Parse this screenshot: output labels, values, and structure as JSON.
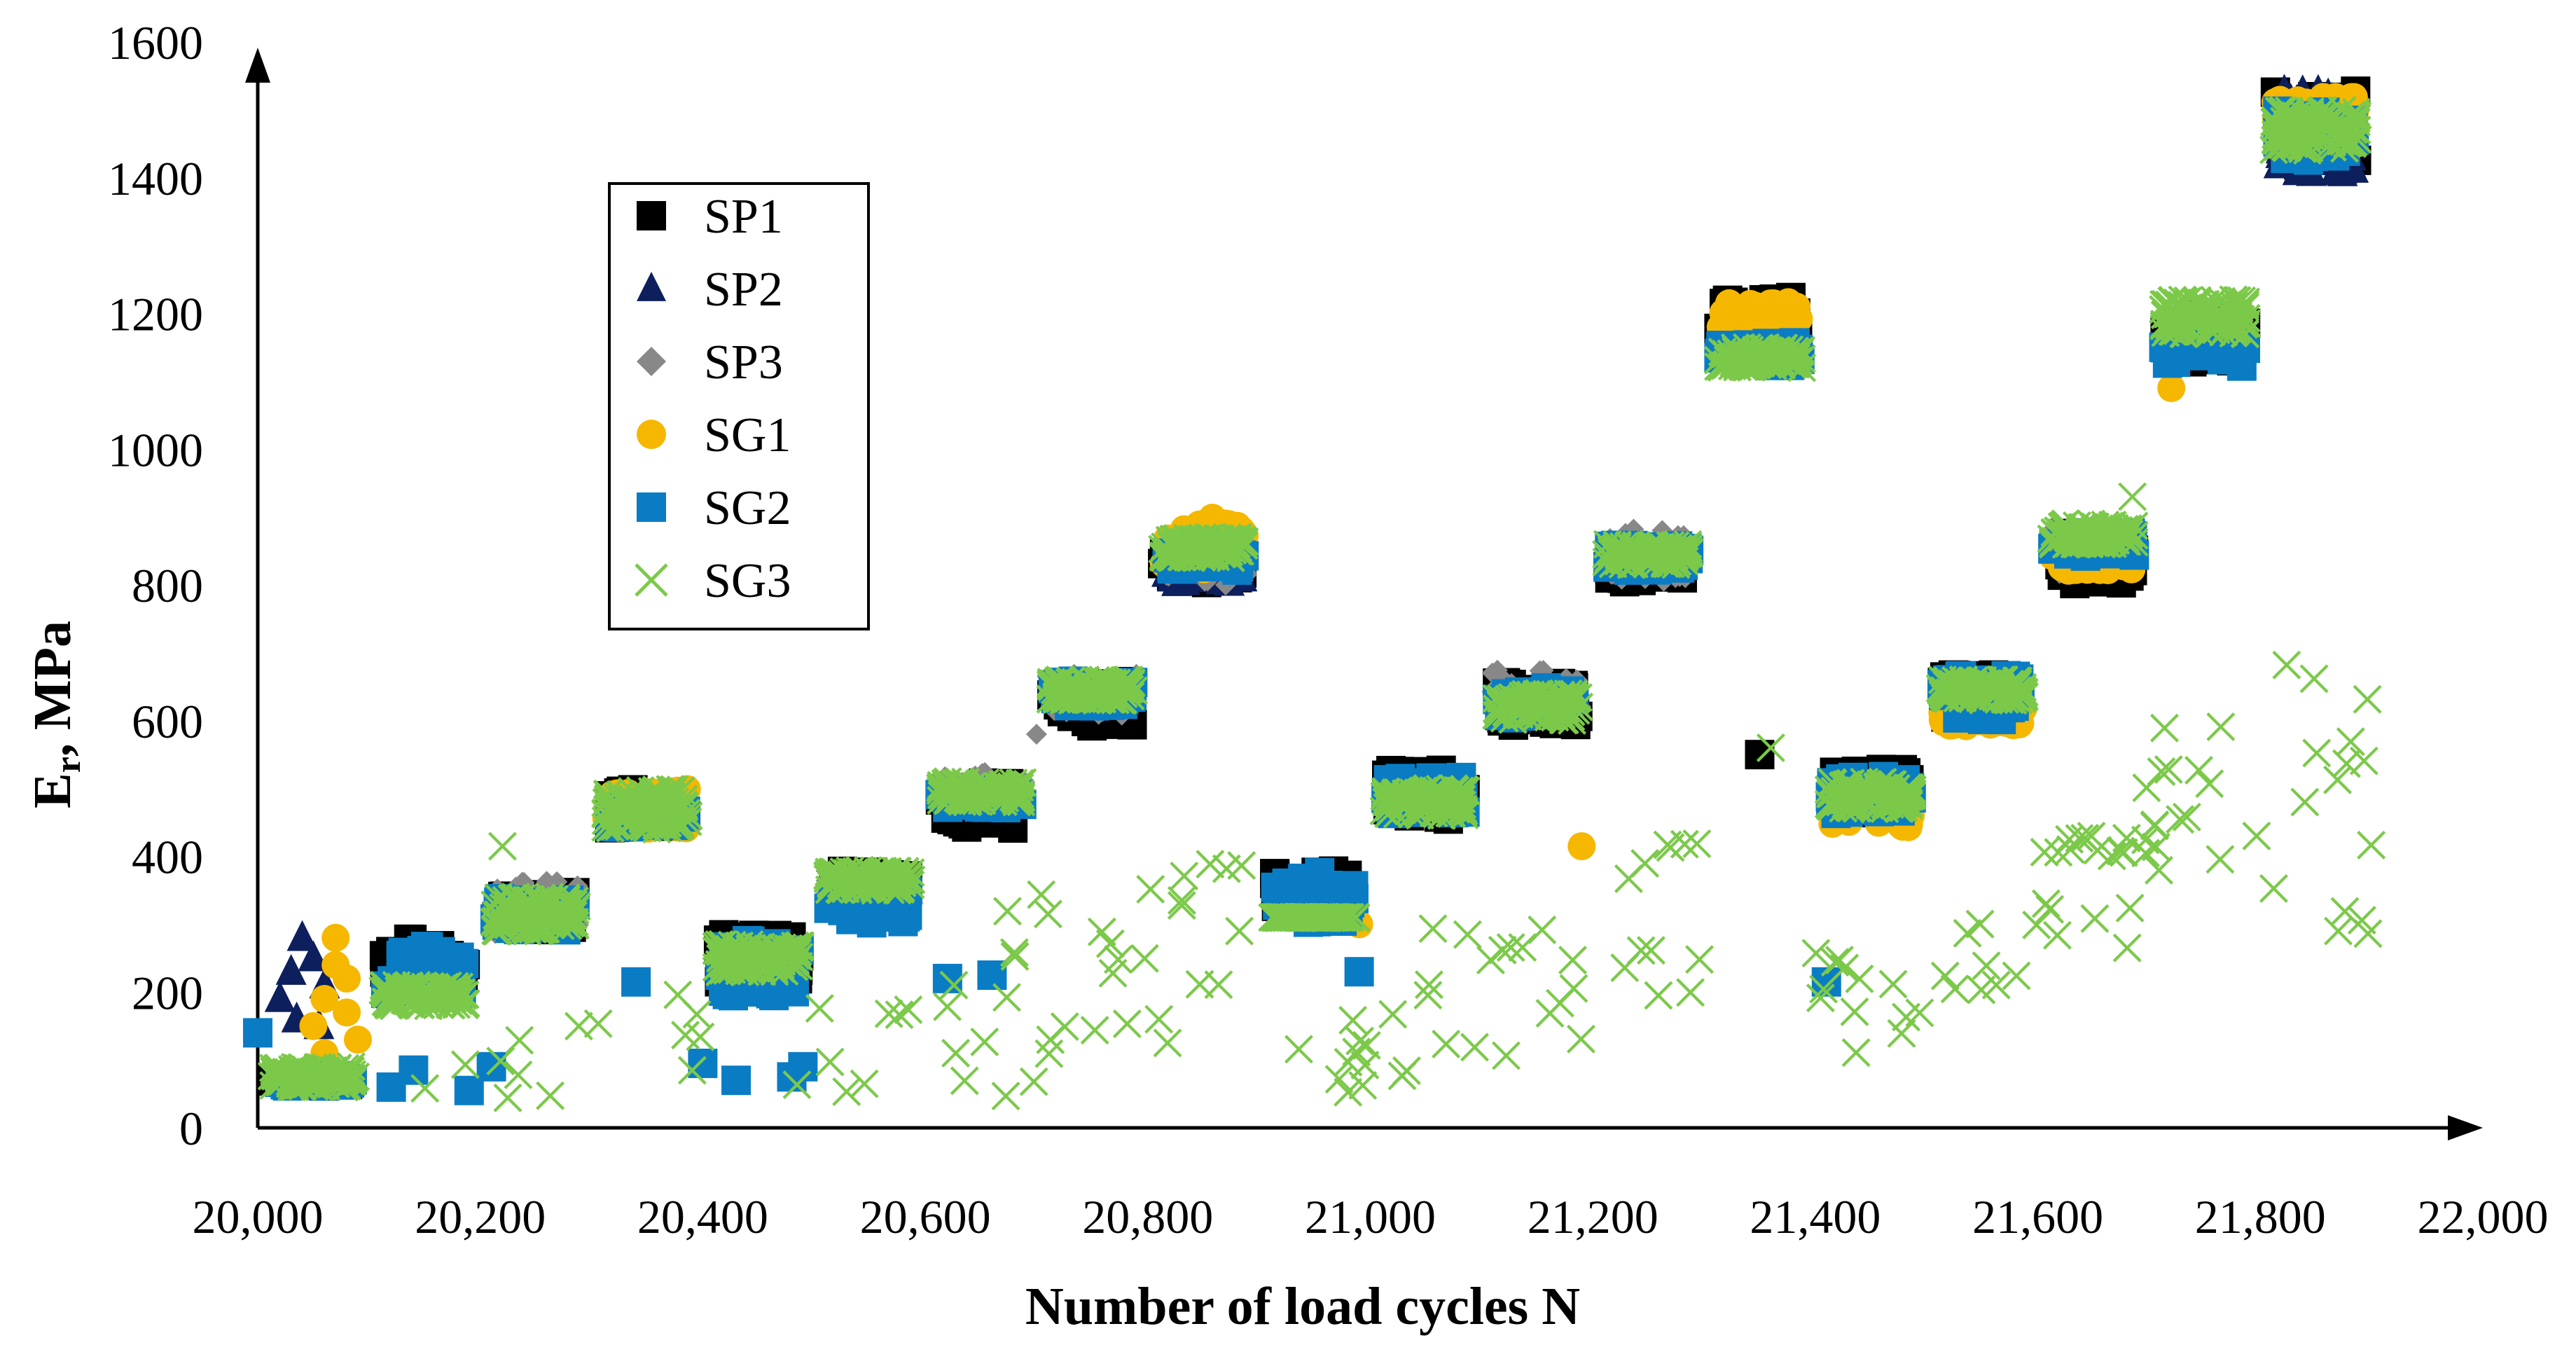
{
  "chart_data": {
    "type": "scatter",
    "title": "",
    "xlabel": "Number of load cycles N",
    "ylabel_main": "E",
    "ylabel_sub": "r",
    "ylabel_rest": ", MPa",
    "xlim": [
      20000,
      22000
    ],
    "ylim": [
      0,
      1600
    ],
    "x_ticks": [
      20000,
      20200,
      20400,
      20600,
      20800,
      21000,
      21200,
      21400,
      21600,
      21800,
      22000
    ],
    "x_tick_labels": [
      "20,000",
      "20,200",
      "20,400",
      "20,600",
      "20,800",
      "21,000",
      "21,200",
      "21,400",
      "21,600",
      "21,800",
      "22,000"
    ],
    "y_ticks": [
      0,
      200,
      400,
      600,
      800,
      1000,
      1200,
      1400,
      1600
    ],
    "y_tick_labels": [
      "0",
      "200",
      "400",
      "600",
      "800",
      "1000",
      "1200",
      "1400",
      "1600"
    ],
    "legend_position": "upper-left",
    "series": [
      {
        "name": "SP1",
        "color": "#000000",
        "marker": "square",
        "clusters": [
          {
            "x": [
              20000,
              20100
            ],
            "y": [
              40,
              100
            ]
          },
          {
            "x": [
              20100,
              20200
            ],
            "y": [
              180,
              300
            ]
          },
          {
            "x": [
              20200,
              20300
            ],
            "y": [
              270,
              370
            ]
          },
          {
            "x": [
              20300,
              20400
            ],
            "y": [
              420,
              520
            ]
          },
          {
            "x": [
              20400,
              20500
            ],
            "y": [
              180,
              310
            ]
          },
          {
            "x": [
              20500,
              20600
            ],
            "y": [
              300,
              400
            ]
          },
          {
            "x": [
              20600,
              20700
            ],
            "y": [
              420,
              530
            ]
          },
          {
            "x": [
              20700,
              20800
            ],
            "y": [
              570,
              680
            ]
          },
          {
            "x": [
              20800,
              20900
            ],
            "y": [
              780,
              880
            ]
          },
          {
            "x": [
              20900,
              21000
            ],
            "y": [
              300,
              400
            ]
          },
          {
            "x": [
              21000,
              21100
            ],
            "y": [
              430,
              550
            ]
          },
          {
            "x": [
              21100,
              21200
            ],
            "y": [
              570,
              680
            ]
          },
          {
            "x": [
              21200,
              21300
            ],
            "y": [
              780,
              880
            ]
          },
          {
            "x": [
              21300,
              21400
            ],
            "y": [
              1110,
              1250
            ]
          },
          {
            "x": [
              21400,
              21500
            ],
            "y": [
              440,
              550
            ]
          },
          {
            "x": [
              21500,
              21600
            ],
            "y": [
              580,
              690
            ]
          },
          {
            "x": [
              21600,
              21700
            ],
            "y": [
              780,
              900
            ]
          },
          {
            "x": [
              21700,
              21800
            ],
            "y": [
              1100,
              1220
            ]
          },
          {
            "x": [
              21800,
              21900
            ],
            "y": [
              1380,
              1550
            ]
          }
        ],
        "points": [
          {
            "x": 21350,
            "y": 550
          }
        ]
      },
      {
        "name": "SP2",
        "color": "#0d1f5c",
        "marker": "triangle",
        "clusters": [
          {
            "x": [
              20800,
              20900
            ],
            "y": [
              780,
              880
            ]
          },
          {
            "x": [
              21800,
              21900
            ],
            "y": [
              1380,
              1550
            ]
          }
        ],
        "points": [
          {
            "x": 20020,
            "y": 190
          },
          {
            "x": 20030,
            "y": 230
          },
          {
            "x": 20040,
            "y": 280
          },
          {
            "x": 20050,
            "y": 250
          },
          {
            "x": 20060,
            "y": 210
          },
          {
            "x": 20035,
            "y": 160
          },
          {
            "x": 20055,
            "y": 150
          },
          {
            "x": 20120,
            "y": 200
          }
        ]
      },
      {
        "name": "SP3",
        "color": "#888888",
        "marker": "diamond",
        "clusters": [
          {
            "x": [
              20200,
              20300
            ],
            "y": [
              270,
              380
            ]
          },
          {
            "x": [
              20500,
              20600
            ],
            "y": [
              300,
              400
            ]
          },
          {
            "x": [
              20600,
              20700
            ],
            "y": [
              450,
              540
            ]
          },
          {
            "x": [
              20700,
              20800
            ],
            "y": [
              590,
              690
            ]
          },
          {
            "x": [
              20800,
              20900
            ],
            "y": [
              790,
              880
            ]
          },
          {
            "x": [
              21100,
              21200
            ],
            "y": [
              590,
              690
            ]
          },
          {
            "x": [
              21200,
              21300
            ],
            "y": [
              790,
              900
            ]
          },
          {
            "x": [
              21600,
              21700
            ],
            "y": [
              800,
              900
            ]
          }
        ],
        "points": [
          {
            "x": 20870,
            "y": 800
          },
          {
            "x": 20700,
            "y": 580
          }
        ]
      },
      {
        "name": "SG1",
        "color": "#f5b700",
        "marker": "circle",
        "clusters": [
          {
            "x": [
              20300,
              20400
            ],
            "y": [
              420,
              520
            ]
          },
          {
            "x": [
              20800,
              20900
            ],
            "y": [
              800,
              920
            ]
          },
          {
            "x": [
              21300,
              21400
            ],
            "y": [
              1150,
              1240
            ]
          },
          {
            "x": [
              21400,
              21500
            ],
            "y": [
              420,
              540
            ]
          },
          {
            "x": [
              21500,
              21600
            ],
            "y": [
              570,
              640
            ]
          },
          {
            "x": [
              21600,
              21700
            ],
            "y": [
              800,
              880
            ]
          },
          {
            "x": [
              21800,
              21900
            ],
            "y": [
              1420,
              1540
            ]
          }
        ],
        "points": [
          {
            "x": 20050,
            "y": 150
          },
          {
            "x": 20060,
            "y": 190
          },
          {
            "x": 20070,
            "y": 240
          },
          {
            "x": 20070,
            "y": 280
          },
          {
            "x": 20080,
            "y": 170
          },
          {
            "x": 20090,
            "y": 130
          },
          {
            "x": 20060,
            "y": 110
          },
          {
            "x": 20080,
            "y": 220
          },
          {
            "x": 21190,
            "y": 415
          },
          {
            "x": 20990,
            "y": 300
          },
          {
            "x": 21720,
            "y": 1090
          }
        ]
      },
      {
        "name": "SG2",
        "color": "#0a7cc4",
        "marker": "square",
        "clusters": [
          {
            "x": [
              20000,
              20100
            ],
            "y": [
              40,
              100
            ]
          },
          {
            "x": [
              20100,
              20200
            ],
            "y": [
              170,
              290
            ]
          },
          {
            "x": [
              20200,
              20300
            ],
            "y": [
              270,
              360
            ]
          },
          {
            "x": [
              20300,
              20400
            ],
            "y": [
              420,
              500
            ]
          },
          {
            "x": [
              20400,
              20500
            ],
            "y": [
              170,
              300
            ]
          },
          {
            "x": [
              20500,
              20600
            ],
            "y": [
              280,
              390
            ]
          },
          {
            "x": [
              20600,
              20700
            ],
            "y": [
              450,
              520
            ]
          },
          {
            "x": [
              20700,
              20800
            ],
            "y": [
              600,
              680
            ]
          },
          {
            "x": [
              20800,
              20900
            ],
            "y": [
              800,
              870
            ]
          },
          {
            "x": [
              20900,
              21000
            ],
            "y": [
              280,
              400
            ]
          },
          {
            "x": [
              21000,
              21100
            ],
            "y": [
              440,
              540
            ]
          },
          {
            "x": [
              21100,
              21200
            ],
            "y": [
              580,
              670
            ]
          },
          {
            "x": [
              21200,
              21300
            ],
            "y": [
              800,
              880
            ]
          },
          {
            "x": [
              21300,
              21400
            ],
            "y": [
              1100,
              1180
            ]
          },
          {
            "x": [
              21400,
              21500
            ],
            "y": [
              440,
              540
            ]
          },
          {
            "x": [
              21500,
              21600
            ],
            "y": [
              580,
              690
            ]
          },
          {
            "x": [
              21600,
              21700
            ],
            "y": [
              820,
              900
            ]
          },
          {
            "x": [
              21700,
              21800
            ],
            "y": [
              1100,
              1200
            ]
          },
          {
            "x": [
              21800,
              21900
            ],
            "y": [
              1400,
              1520
            ]
          }
        ],
        "points": [
          {
            "x": 20000,
            "y": 140
          },
          {
            "x": 20120,
            "y": 60
          },
          {
            "x": 20140,
            "y": 85
          },
          {
            "x": 20190,
            "y": 55
          },
          {
            "x": 20210,
            "y": 90
          },
          {
            "x": 20340,
            "y": 215
          },
          {
            "x": 20400,
            "y": 95
          },
          {
            "x": 20430,
            "y": 70
          },
          {
            "x": 20480,
            "y": 75
          },
          {
            "x": 20490,
            "y": 90
          },
          {
            "x": 20620,
            "y": 220
          },
          {
            "x": 20660,
            "y": 225
          },
          {
            "x": 20990,
            "y": 230
          },
          {
            "x": 21410,
            "y": 215
          }
        ]
      },
      {
        "name": "SG3",
        "color": "#7cc94a",
        "marker": "x",
        "clusters": [
          {
            "x": [
              20000,
              20100
            ],
            "y": [
              40,
              110
            ]
          },
          {
            "x": [
              20100,
              20200
            ],
            "y": [
              160,
              230
            ]
          },
          {
            "x": [
              20200,
              20300
            ],
            "y": [
              270,
              360
            ]
          },
          {
            "x": [
              20300,
              20400
            ],
            "y": [
              420,
              520
            ]
          },
          {
            "x": [
              20400,
              20500
            ],
            "y": [
              210,
              290
            ]
          },
          {
            "x": [
              20500,
              20600
            ],
            "y": [
              330,
              400
            ]
          },
          {
            "x": [
              20600,
              20700
            ],
            "y": [
              460,
              530
            ]
          },
          {
            "x": [
              20700,
              20800
            ],
            "y": [
              610,
              680
            ]
          },
          {
            "x": [
              20800,
              20900
            ],
            "y": [
              820,
              890
            ]
          },
          {
            "x": [
              20900,
              21000
            ],
            "y": [
              290,
              330
            ]
          },
          {
            "x": [
              21000,
              21100
            ],
            "y": [
              440,
              520
            ]
          },
          {
            "x": [
              21100,
              21200
            ],
            "y": [
              580,
              660
            ]
          },
          {
            "x": [
              21200,
              21300
            ],
            "y": [
              810,
              880
            ]
          },
          {
            "x": [
              21300,
              21400
            ],
            "y": [
              1100,
              1170
            ]
          },
          {
            "x": [
              21400,
              21500
            ],
            "y": [
              450,
              530
            ]
          },
          {
            "x": [
              21500,
              21600
            ],
            "y": [
              610,
              680
            ]
          },
          {
            "x": [
              21600,
              21700
            ],
            "y": [
              840,
              910
            ]
          },
          {
            "x": [
              21700,
              21800
            ],
            "y": [
              1150,
              1240
            ]
          },
          {
            "x": [
              21800,
              21900
            ],
            "y": [
              1420,
              1520
            ]
          }
        ],
        "scatter_bands": [
          {
            "x": [
              20150,
              20400
            ],
            "y": [
              40,
              200
            ]
          },
          {
            "x": [
              20450,
              20700
            ],
            "y": [
              30,
              220
            ]
          },
          {
            "x": [
              20600,
              20850
            ],
            "y": [
              80,
              350
            ]
          },
          {
            "x": [
              20750,
              20900
            ],
            "y": [
              150,
              420
            ]
          },
          {
            "x": [
              20900,
              21100
            ],
            "y": [
              50,
              200
            ]
          },
          {
            "x": [
              21050,
              21200
            ],
            "y": [
              80,
              310
            ]
          },
          {
            "x": [
              21180,
              21300
            ],
            "y": [
              190,
              420
            ]
          },
          {
            "x": [
              21400,
              21550
            ],
            "y": [
              90,
              260
            ]
          },
          {
            "x": [
              21500,
              21700
            ],
            "y": [
              200,
              340
            ]
          },
          {
            "x": [
              21600,
              21700
            ],
            "y": [
              400,
              430
            ]
          },
          {
            "x": [
              21690,
              21780
            ],
            "y": [
              370,
              600
            ]
          },
          {
            "x": [
              21780,
              21900
            ],
            "y": [
              280,
              730
            ]
          }
        ],
        "points": [
          {
            "x": 20220,
            "y": 415
          },
          {
            "x": 20810,
            "y": 160
          },
          {
            "x": 21360,
            "y": 560
          },
          {
            "x": 21685,
            "y": 930
          },
          {
            "x": 21840,
            "y": 480
          },
          {
            "x": 21870,
            "y": 290
          }
        ]
      }
    ]
  }
}
